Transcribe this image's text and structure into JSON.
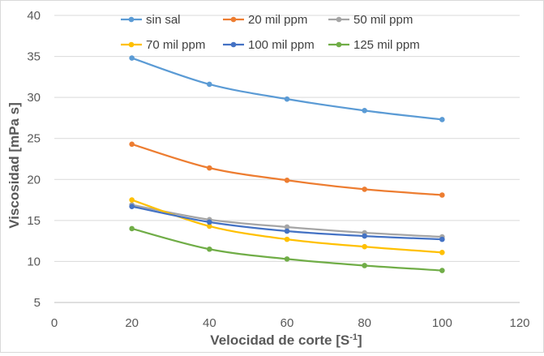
{
  "chart_data": {
    "type": "line",
    "title": "",
    "xlabel": "Velocidad de corte [S",
    "xlabel_superscript": "-1",
    "xlabel_suffix": "]",
    "ylabel": "Viscosidad  [mPa s]",
    "xlim": [
      0,
      120
    ],
    "ylim": [
      5,
      40
    ],
    "xticks": [
      0,
      20,
      40,
      60,
      80,
      100,
      120
    ],
    "yticks": [
      5,
      10,
      15,
      20,
      25,
      30,
      35,
      40
    ],
    "grid": {
      "horizontal": true,
      "vertical": false
    },
    "legend": "top",
    "x": [
      20,
      40,
      60,
      80,
      100
    ],
    "series": [
      {
        "name": "sin sal",
        "color": "#5b9bd5",
        "values": [
          34.8,
          31.6,
          29.8,
          28.4,
          27.3
        ]
      },
      {
        "name": "20 mil ppm",
        "color": "#ed7d31",
        "values": [
          24.3,
          21.4,
          19.9,
          18.8,
          18.1
        ]
      },
      {
        "name": "50 mil ppm",
        "color": "#a5a5a5",
        "values": [
          16.9,
          15.1,
          14.2,
          13.5,
          13.0
        ]
      },
      {
        "name": "70 mil ppm",
        "color": "#ffc000",
        "values": [
          17.5,
          14.3,
          12.7,
          11.8,
          11.1
        ]
      },
      {
        "name": "100 mil ppm",
        "color": "#4472c4",
        "values": [
          16.7,
          14.8,
          13.7,
          13.1,
          12.7
        ]
      },
      {
        "name": "125 mil ppm",
        "color": "#70ad47",
        "values": [
          14.0,
          11.5,
          10.3,
          9.5,
          8.9
        ]
      }
    ]
  }
}
